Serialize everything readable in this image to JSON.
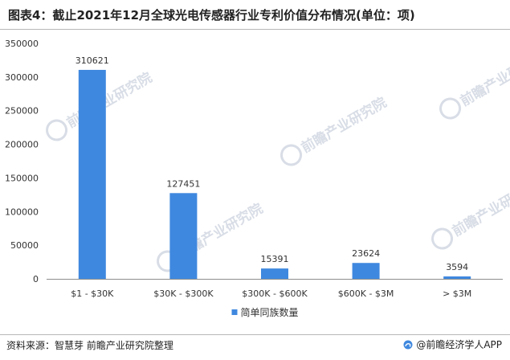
{
  "header": {
    "title": "图表4：截止2021年12月全球光电传感器行业专利价值分布情况(单位：项)"
  },
  "footer": {
    "source": "资料来源：智慧芽 前瞻产业研究院整理",
    "brand": "@前瞻经济学人APP"
  },
  "watermark": {
    "text": "前瞻产业研究院"
  },
  "colors": {
    "bar": "#3f88df",
    "axis": "#8e8e8e"
  },
  "chart_data": {
    "type": "bar",
    "title": "图表4：截止2021年12月全球光电传感器行业专利价值分布情况(单位：项)",
    "categories": [
      "$1 - $30K",
      "$30K - $300K",
      "$300K - $600K",
      "$600K - $3M",
      "> $3M"
    ],
    "series": [
      {
        "name": "简单同族数量",
        "values": [
          310621,
          127451,
          15391,
          23624,
          3594
        ]
      }
    ],
    "xlabel": "",
    "ylabel": "",
    "ylim": [
      0,
      350000
    ],
    "yticks": [
      0,
      50000,
      100000,
      150000,
      200000,
      250000,
      300000,
      350000
    ],
    "grid": false,
    "legend": "bottom-center",
    "data_labels": true
  }
}
